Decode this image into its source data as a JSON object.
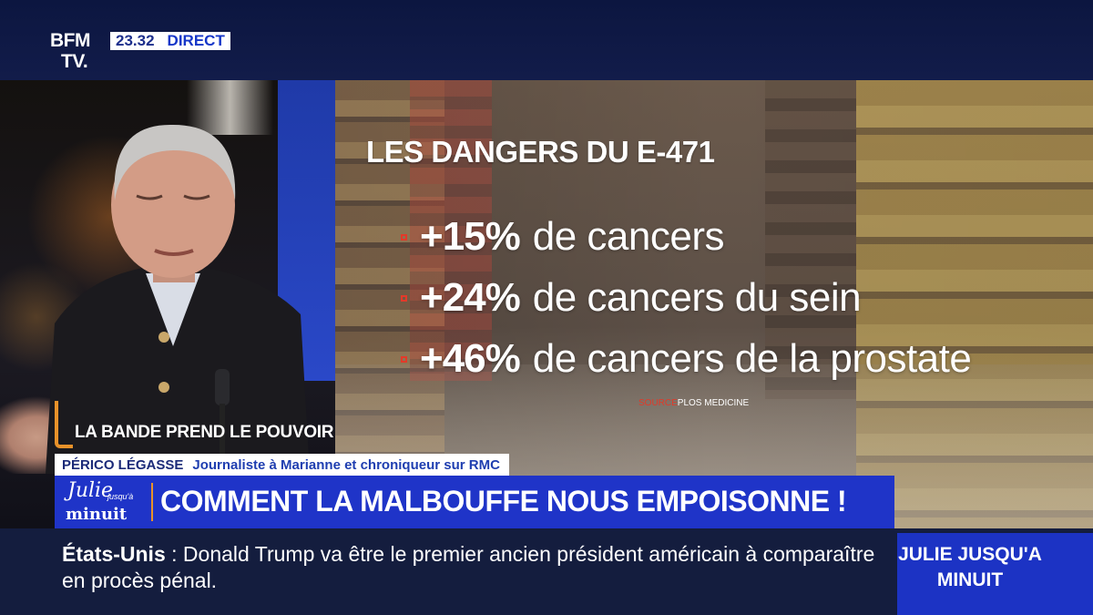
{
  "channel": {
    "logo_line1": "BFM",
    "logo_line2": "TV.",
    "time": "23.32",
    "live": "DIRECT"
  },
  "graphic": {
    "title": "LES DANGERS DU E-471",
    "stats": [
      {
        "pct": "+15%",
        "text": "de cancers"
      },
      {
        "pct": "+24%",
        "text": "de cancers du sein"
      },
      {
        "pct": "+46%",
        "text": "de cancers de la prostate"
      }
    ],
    "source_label": "SOURCE",
    "source_value": "PLOS MEDICINE"
  },
  "show": {
    "segment": "LA BANDE PREND LE POUVOIR",
    "guest_name": "PÉRICO LÉGASSE",
    "guest_role": "Journaliste à Marianne et chroniqueur sur RMC",
    "logo_julie": "Julie",
    "logo_jusqua": "jusqu'à",
    "logo_minuit": "minuit",
    "headline": "COMMENT LA MALBOUFFE NOUS EMPOISONNE !"
  },
  "ticker": {
    "place": "États-Unis",
    "separator": " : ",
    "text": "Donald Trump va être le premier ancien président américain à comparaître en procès pénal.",
    "promo_line1": "JULIE JUSQU'A",
    "promo_line2": "MINUIT"
  },
  "colors": {
    "accent": "#e8922a",
    "blue": "#1f34c8",
    "bullet": "#e23a2a"
  }
}
